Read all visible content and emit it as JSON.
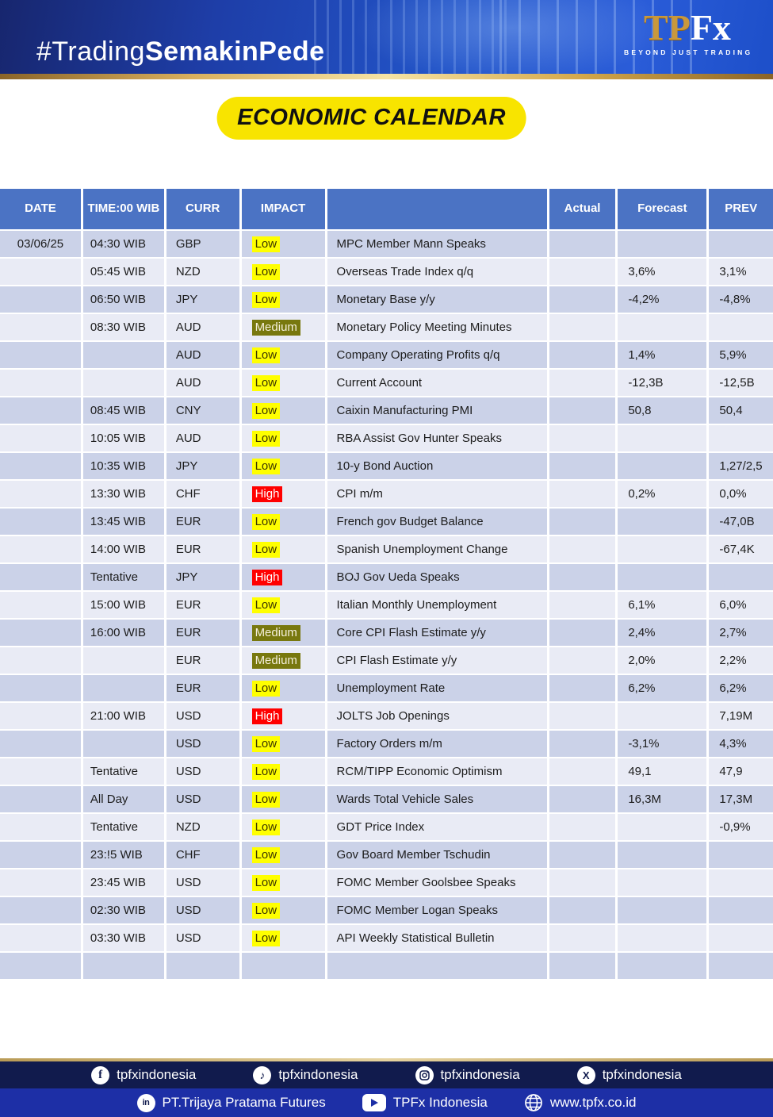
{
  "banner": {
    "hashtag_light": "#Trading",
    "hashtag_bold": "SemakinPede",
    "logo_tp": "TP",
    "logo_fx": "Fx",
    "logo_tagline": "BEYOND JUST TRADING"
  },
  "title": {
    "label": "ECONOMIC CALENDAR"
  },
  "table": {
    "columns": [
      "DATE",
      "TIME:00 WIB",
      "CURR",
      "IMPACT",
      "",
      "Actual",
      "Forecast",
      "PREV"
    ],
    "impact_colors": {
      "Low": "#ffff00",
      "Medium": "#78780e",
      "High": "#ff0000"
    },
    "rows": [
      {
        "date": "03/06/25",
        "time": "04:30 WIB",
        "curr": "GBP",
        "impact": "Low",
        "event": "MPC Member Mann Speaks",
        "actual": "",
        "forecast": "",
        "prev": ""
      },
      {
        "date": "",
        "time": "05:45 WIB",
        "curr": "NZD",
        "impact": "Low",
        "event": "Overseas Trade Index q/q",
        "actual": "",
        "forecast": "3,6%",
        "prev": "3,1%"
      },
      {
        "date": "",
        "time": "06:50 WIB",
        "curr": "JPY",
        "impact": "Low",
        "event": "Monetary Base y/y",
        "actual": "",
        "forecast": "-4,2%",
        "prev": "-4,8%"
      },
      {
        "date": "",
        "time": "08:30 WIB",
        "curr": "AUD",
        "impact": "Medium",
        "event": "Monetary Policy Meeting Minutes",
        "actual": "",
        "forecast": "",
        "prev": ""
      },
      {
        "date": "",
        "time": "",
        "curr": "AUD",
        "impact": "Low",
        "event": "Company Operating Profits q/q",
        "actual": "",
        "forecast": "1,4%",
        "prev": "5,9%"
      },
      {
        "date": "",
        "time": "",
        "curr": "AUD",
        "impact": "Low",
        "event": "Current Account",
        "actual": "",
        "forecast": "-12,3B",
        "prev": "-12,5B"
      },
      {
        "date": "",
        "time": "08:45 WIB",
        "curr": "CNY",
        "impact": "Low",
        "event": "Caixin Manufacturing PMI",
        "actual": "",
        "forecast": "50,8",
        "prev": "50,4"
      },
      {
        "date": "",
        "time": "10:05 WIB",
        "curr": "AUD",
        "impact": "Low",
        "event": "RBA Assist Gov Hunter Speaks",
        "actual": "",
        "forecast": "",
        "prev": ""
      },
      {
        "date": "",
        "time": "10:35 WIB",
        "curr": "JPY",
        "impact": "Low",
        "event": "10-y Bond Auction",
        "actual": "",
        "forecast": "",
        "prev": "1,27/2,5"
      },
      {
        "date": "",
        "time": "13:30 WIB",
        "curr": "CHF",
        "impact": "High",
        "event": "CPI m/m",
        "actual": "",
        "forecast": "0,2%",
        "prev": "0,0%"
      },
      {
        "date": "",
        "time": "13:45 WIB",
        "curr": "EUR",
        "impact": "Low",
        "event": "French gov Budget Balance",
        "actual": "",
        "forecast": "",
        "prev": "-47,0B"
      },
      {
        "date": "",
        "time": "14:00 WIB",
        "curr": "EUR",
        "impact": "Low",
        "event": "Spanish Unemployment Change",
        "actual": "",
        "forecast": "",
        "prev": "-67,4K"
      },
      {
        "date": "",
        "time": "Tentative",
        "curr": "JPY",
        "impact": "High",
        "event": "BOJ Gov Ueda Speaks",
        "actual": "",
        "forecast": "",
        "prev": ""
      },
      {
        "date": "",
        "time": "15:00 WIB",
        "curr": "EUR",
        "impact": "Low",
        "event": "Italian Monthly Unemployment",
        "actual": "",
        "forecast": "6,1%",
        "prev": "6,0%"
      },
      {
        "date": "",
        "time": "16:00 WIB",
        "curr": "EUR",
        "impact": "Medium",
        "event": "Core CPI Flash Estimate y/y",
        "actual": "",
        "forecast": "2,4%",
        "prev": "2,7%"
      },
      {
        "date": "",
        "time": "",
        "curr": "EUR",
        "impact": "Medium",
        "event": "CPI Flash Estimate y/y",
        "actual": "",
        "forecast": "2,0%",
        "prev": "2,2%"
      },
      {
        "date": "",
        "time": "",
        "curr": "EUR",
        "impact": "Low",
        "event": "Unemployment Rate",
        "actual": "",
        "forecast": "6,2%",
        "prev": "6,2%"
      },
      {
        "date": "",
        "time": "21:00 WIB",
        "curr": "USD",
        "impact": "High",
        "event": "JOLTS Job Openings",
        "actual": "",
        "forecast": "",
        "prev": "7,19M"
      },
      {
        "date": "",
        "time": "",
        "curr": "USD",
        "impact": "Low",
        "event": "Factory Orders m/m",
        "actual": "",
        "forecast": "-3,1%",
        "prev": "4,3%"
      },
      {
        "date": "",
        "time": "Tentative",
        "curr": "USD",
        "impact": "Low",
        "event": "RCM/TIPP Economic Optimism",
        "actual": "",
        "forecast": "49,1",
        "prev": "47,9"
      },
      {
        "date": "",
        "time": "All Day",
        "curr": "USD",
        "impact": "Low",
        "event": "Wards Total Vehicle Sales",
        "actual": "",
        "forecast": "16,3M",
        "prev": "17,3M"
      },
      {
        "date": "",
        "time": "Tentative",
        "curr": "NZD",
        "impact": "Low",
        "event": "GDT Price Index",
        "actual": "",
        "forecast": "",
        "prev": "-0,9%"
      },
      {
        "date": "",
        "time": "23:!5 WIB",
        "curr": "CHF",
        "impact": "Low",
        "event": "Gov Board Member Tschudin",
        "actual": "",
        "forecast": "",
        "prev": ""
      },
      {
        "date": "",
        "time": "23:45 WIB",
        "curr": "USD",
        "impact": "Low",
        "event": "FOMC Member Goolsbee Speaks",
        "actual": "",
        "forecast": "",
        "prev": ""
      },
      {
        "date": "",
        "time": "02:30 WIB",
        "curr": "USD",
        "impact": "Low",
        "event": "FOMC Member Logan Speaks",
        "actual": "",
        "forecast": "",
        "prev": ""
      },
      {
        "date": "",
        "time": "03:30 WIB",
        "curr": "USD",
        "impact": "Low",
        "event": "API Weekly Statistical Bulletin",
        "actual": "",
        "forecast": "",
        "prev": ""
      },
      {
        "date": "",
        "time": "",
        "curr": "",
        "impact": "",
        "event": "",
        "actual": "",
        "forecast": "",
        "prev": ""
      }
    ]
  },
  "footer": {
    "social": [
      {
        "icon": "facebook-icon",
        "label": "tpfxindonesia"
      },
      {
        "icon": "tiktok-icon",
        "label": "tpfxindonesia"
      },
      {
        "icon": "instagram-icon",
        "label": "tpfxindonesia"
      },
      {
        "icon": "x-icon",
        "label": "tpfxindonesia"
      }
    ],
    "company": [
      {
        "icon": "linkedin-icon",
        "label": "PT.Trijaya Pratama Futures"
      },
      {
        "icon": "youtube-icon",
        "label": "TPFx Indonesia"
      },
      {
        "icon": "globe-icon",
        "label": "www.tpfx.co.id"
      }
    ]
  }
}
